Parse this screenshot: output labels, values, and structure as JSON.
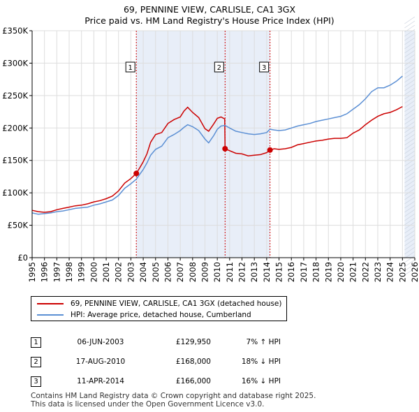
{
  "title_line1": "69, PENNINE VIEW, CARLISLE, CA1 3GX",
  "title_line2": "Price paid vs. HM Land Registry's House Price Index (HPI)",
  "chart_data": {
    "type": "line",
    "title": "69, PENNINE VIEW, CARLISLE, CA1 3GX — Price paid vs. HM Land Registry's House Price Index (HPI)",
    "xlim": [
      1995,
      2026
    ],
    "ylim": [
      0,
      350000
    ],
    "yticks": [
      0,
      50000,
      100000,
      150000,
      200000,
      250000,
      300000,
      350000
    ],
    "ytick_labels": [
      "£0",
      "£50K",
      "£100K",
      "£150K",
      "£200K",
      "£250K",
      "£300K",
      "£350K"
    ],
    "xticks": [
      1995,
      1996,
      1997,
      1998,
      1999,
      2000,
      2001,
      2002,
      2003,
      2004,
      2005,
      2006,
      2007,
      2008,
      2009,
      2010,
      2011,
      2012,
      2013,
      2014,
      2015,
      2016,
      2017,
      2018,
      2019,
      2020,
      2021,
      2022,
      2023,
      2024,
      2025,
      2026
    ],
    "grid": true,
    "data_end": 2025.17,
    "series": [
      {
        "name": "69, PENNINE VIEW, CARLISLE, CA1 3GX (detached house)",
        "color": "#cc0000",
        "x": [
          1995.0,
          1995.5,
          1996.0,
          1996.5,
          1997.0,
          1997.5,
          1998.0,
          1998.5,
          1999.0,
          1999.5,
          2000.0,
          2000.5,
          2001.0,
          2001.5,
          2002.0,
          2002.5,
          2003.0,
          2003.44,
          2003.7,
          2004.0,
          2004.3,
          2004.6,
          2005.0,
          2005.5,
          2006.0,
          2006.5,
          2007.0,
          2007.3,
          2007.6,
          2008.0,
          2008.5,
          2009.0,
          2009.3,
          2009.7,
          2010.0,
          2010.3,
          2010.6,
          2010.63,
          2011.0,
          2011.5,
          2012.0,
          2012.5,
          2013.0,
          2013.5,
          2014.0,
          2014.27,
          2014.6,
          2015.0,
          2015.5,
          2016.0,
          2016.5,
          2017.0,
          2017.5,
          2018.0,
          2018.5,
          2019.0,
          2019.5,
          2020.0,
          2020.5,
          2021.0,
          2021.5,
          2022.0,
          2022.5,
          2023.0,
          2023.5,
          2024.0,
          2024.5,
          2025.0
        ],
        "values": [
          73000,
          71000,
          70000,
          71000,
          74000,
          76000,
          78000,
          80000,
          81000,
          83000,
          86000,
          88000,
          91000,
          95000,
          103000,
          115000,
          122000,
          129950,
          138000,
          148000,
          160000,
          178000,
          190000,
          193000,
          207000,
          213000,
          217000,
          226000,
          232000,
          224000,
          216000,
          199000,
          195000,
          206000,
          215000,
          217000,
          214000,
          168000,
          165000,
          161000,
          160000,
          157000,
          158000,
          159000,
          162000,
          166000,
          168000,
          167000,
          168000,
          170000,
          174000,
          176000,
          178000,
          180000,
          181000,
          183000,
          184000,
          184000,
          185000,
          192000,
          197000,
          205000,
          212000,
          218000,
          222000,
          224000,
          228000,
          233000
        ]
      },
      {
        "name": "HPI: Average price, detached house, Cumberland",
        "color": "#5b8fd4",
        "x": [
          1995.0,
          1995.5,
          1996.0,
          1996.5,
          1997.0,
          1997.5,
          1998.0,
          1998.5,
          1999.0,
          1999.5,
          2000.0,
          2000.5,
          2001.0,
          2001.5,
          2002.0,
          2002.5,
          2003.0,
          2003.44,
          2003.7,
          2004.0,
          2004.3,
          2004.6,
          2005.0,
          2005.5,
          2006.0,
          2006.5,
          2007.0,
          2007.3,
          2007.6,
          2008.0,
          2008.5,
          2009.0,
          2009.3,
          2009.7,
          2010.0,
          2010.3,
          2010.63,
          2011.0,
          2011.5,
          2012.0,
          2012.5,
          2013.0,
          2013.5,
          2014.0,
          2014.27,
          2014.6,
          2015.0,
          2015.5,
          2016.0,
          2016.5,
          2017.0,
          2017.5,
          2018.0,
          2018.5,
          2019.0,
          2019.5,
          2020.0,
          2020.5,
          2021.0,
          2021.5,
          2022.0,
          2022.5,
          2023.0,
          2023.5,
          2024.0,
          2024.5,
          2025.0
        ],
        "values": [
          69000,
          67000,
          68000,
          69000,
          71000,
          72000,
          74000,
          76000,
          77000,
          78000,
          81000,
          83000,
          86000,
          89000,
          96000,
          107000,
          114000,
          121000,
          128000,
          136000,
          146000,
          158000,
          167000,
          172000,
          185000,
          190000,
          196000,
          201000,
          205000,
          202000,
          196000,
          183000,
          177000,
          188000,
          198000,
          203000,
          204000,
          200000,
          195000,
          193000,
          191000,
          190000,
          191000,
          193000,
          198000,
          197000,
          196000,
          197000,
          200000,
          203000,
          205000,
          207000,
          210000,
          212000,
          214000,
          216000,
          218000,
          222000,
          229000,
          236000,
          245000,
          256000,
          262000,
          262000,
          266000,
          272000,
          280000
        ]
      }
    ],
    "sales": [
      {
        "id": "1",
        "date": "06-JUN-2003",
        "x": 2003.44,
        "price": 129950,
        "price_label": "£129,950",
        "hpi": "7% ↑ HPI"
      },
      {
        "id": "2",
        "date": "17-AUG-2010",
        "x": 2010.63,
        "price": 168000,
        "price_label": "£168,000",
        "hpi": "18% ↓ HPI"
      },
      {
        "id": "3",
        "date": "11-APR-2014",
        "x": 2014.27,
        "price": 166000,
        "price_label": "£166,000",
        "hpi": "16% ↓ HPI"
      }
    ],
    "colors": {
      "band": "#e8eef8",
      "grid": "#dddddd",
      "vline": "#cc0000"
    }
  },
  "legend": {
    "red_label": "69, PENNINE VIEW, CARLISLE, CA1 3GX (detached house)",
    "blue_label": "HPI: Average price, detached house, Cumberland"
  },
  "footer_line1": "Contains HM Land Registry data © Crown copyright and database right 2025.",
  "footer_line2": "This data is licensed under the Open Government Licence v3.0."
}
